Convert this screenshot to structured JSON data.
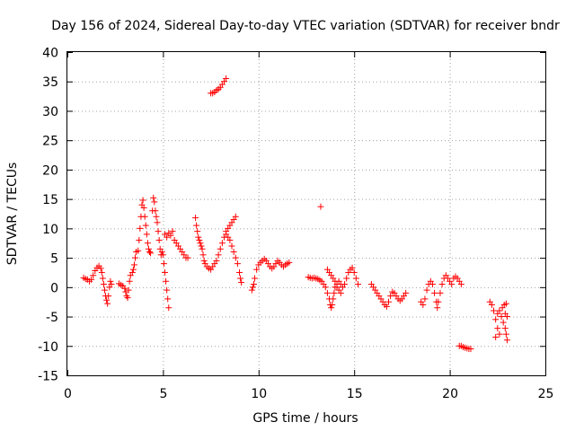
{
  "chart_data": {
    "type": "scatter",
    "title": "Day 156 of 2024, Sidereal Day-to-day VTEC variation (SDTVAR) for receiver bndr",
    "xlabel": "GPS time / hours",
    "ylabel": "SDTVAR / TECUs",
    "xlim": [
      0,
      25
    ],
    "ylim": [
      -15,
      40
    ],
    "xticks": [
      0,
      5,
      10,
      15,
      20,
      25
    ],
    "yticks": [
      -15,
      -10,
      -5,
      0,
      5,
      10,
      15,
      20,
      25,
      30,
      35,
      40
    ],
    "grid": true,
    "marker": "+",
    "marker_color": "#ff0000",
    "series": [
      {
        "name": "SDTVAR",
        "points": [
          [
            0.85,
            1.6
          ],
          [
            0.95,
            1.4
          ],
          [
            1.05,
            1.3
          ],
          [
            1.15,
            1.0
          ],
          [
            1.25,
            1.3
          ],
          [
            1.35,
            2.0
          ],
          [
            1.45,
            2.8
          ],
          [
            1.55,
            3.3
          ],
          [
            1.65,
            3.6
          ],
          [
            1.75,
            3.2
          ],
          [
            1.8,
            2.5
          ],
          [
            1.85,
            1.5
          ],
          [
            1.9,
            0.5
          ],
          [
            1.95,
            -0.5
          ],
          [
            2.0,
            -1.5
          ],
          [
            2.05,
            -2.2
          ],
          [
            2.1,
            -2.8
          ],
          [
            2.15,
            -1.5
          ],
          [
            2.2,
            0.0
          ],
          [
            2.25,
            1.0
          ],
          [
            2.3,
            0.5
          ],
          [
            2.7,
            0.6
          ],
          [
            2.8,
            0.4
          ],
          [
            2.9,
            0.2
          ],
          [
            3.0,
            -0.2
          ],
          [
            3.05,
            -0.8
          ],
          [
            3.1,
            -1.5
          ],
          [
            3.15,
            -1.8
          ],
          [
            3.2,
            -0.5
          ],
          [
            3.25,
            1.0
          ],
          [
            3.3,
            2.0
          ],
          [
            3.4,
            2.5
          ],
          [
            3.45,
            3.0
          ],
          [
            3.5,
            3.8
          ],
          [
            3.55,
            5.0
          ],
          [
            3.6,
            6.0
          ],
          [
            3.7,
            6.2
          ],
          [
            3.75,
            8.0
          ],
          [
            3.8,
            10.0
          ],
          [
            3.85,
            12.0
          ],
          [
            3.9,
            14.0
          ],
          [
            3.95,
            14.8
          ],
          [
            4.0,
            13.5
          ],
          [
            4.05,
            12.0
          ],
          [
            4.1,
            10.5
          ],
          [
            4.15,
            9.0
          ],
          [
            4.2,
            7.5
          ],
          [
            4.25,
            6.5
          ],
          [
            4.3,
            6.0
          ],
          [
            4.35,
            5.8
          ],
          [
            4.45,
            13.0
          ],
          [
            4.5,
            15.2
          ],
          [
            4.55,
            14.5
          ],
          [
            4.6,
            13.0
          ],
          [
            4.65,
            12.0
          ],
          [
            4.7,
            11.0
          ],
          [
            4.75,
            9.5
          ],
          [
            4.8,
            8.0
          ],
          [
            4.85,
            6.5
          ],
          [
            4.9,
            5.5
          ],
          [
            4.95,
            6.0
          ],
          [
            5.0,
            5.5
          ],
          [
            5.05,
            4.0
          ],
          [
            5.1,
            2.5
          ],
          [
            5.15,
            1.0
          ],
          [
            5.2,
            -0.5
          ],
          [
            5.25,
            -2.0
          ],
          [
            5.3,
            -3.5
          ],
          [
            5.1,
            9.0
          ],
          [
            5.2,
            8.5
          ],
          [
            5.3,
            9.2
          ],
          [
            5.4,
            8.8
          ],
          [
            5.5,
            9.5
          ],
          [
            5.6,
            8.0
          ],
          [
            5.7,
            7.5
          ],
          [
            5.8,
            7.0
          ],
          [
            5.9,
            6.5
          ],
          [
            6.0,
            6.0
          ],
          [
            6.1,
            5.5
          ],
          [
            6.2,
            5.0
          ],
          [
            6.3,
            5.0
          ],
          [
            6.7,
            11.8
          ],
          [
            6.75,
            10.5
          ],
          [
            6.8,
            9.5
          ],
          [
            6.85,
            8.5
          ],
          [
            6.9,
            8.0
          ],
          [
            6.95,
            7.5
          ],
          [
            7.0,
            7.0
          ],
          [
            7.05,
            6.5
          ],
          [
            7.1,
            5.5
          ],
          [
            7.15,
            4.5
          ],
          [
            7.2,
            4.0
          ],
          [
            7.3,
            3.5
          ],
          [
            7.4,
            3.2
          ],
          [
            7.5,
            3.0
          ],
          [
            7.6,
            3.5
          ],
          [
            7.7,
            4.0
          ],
          [
            7.8,
            4.5
          ],
          [
            7.9,
            5.5
          ],
          [
            8.0,
            6.5
          ],
          [
            8.1,
            7.5
          ],
          [
            8.2,
            8.5
          ],
          [
            8.3,
            9.0
          ],
          [
            8.4,
            8.5
          ],
          [
            8.5,
            8.0
          ],
          [
            8.6,
            7.0
          ],
          [
            8.7,
            6.0
          ],
          [
            8.8,
            5.0
          ],
          [
            8.9,
            4.0
          ],
          [
            9.0,
            2.5
          ],
          [
            9.05,
            1.5
          ],
          [
            9.1,
            0.8
          ],
          [
            8.3,
            9.5
          ],
          [
            8.4,
            10.0
          ],
          [
            8.5,
            10.5
          ],
          [
            8.6,
            11.0
          ],
          [
            8.7,
            11.5
          ],
          [
            8.8,
            12.0
          ],
          [
            7.5,
            33.0
          ],
          [
            7.6,
            33.0
          ],
          [
            7.7,
            33.2
          ],
          [
            7.8,
            33.5
          ],
          [
            7.9,
            33.7
          ],
          [
            8.0,
            34.0
          ],
          [
            8.1,
            34.5
          ],
          [
            8.2,
            35.0
          ],
          [
            8.3,
            35.5
          ],
          [
            9.65,
            -0.5
          ],
          [
            9.7,
            0.0
          ],
          [
            9.75,
            0.5
          ],
          [
            9.8,
            1.5
          ],
          [
            9.9,
            3.0
          ],
          [
            10.0,
            3.8
          ],
          [
            10.1,
            4.2
          ],
          [
            10.2,
            4.5
          ],
          [
            10.3,
            4.8
          ],
          [
            10.4,
            4.5
          ],
          [
            10.5,
            4.0
          ],
          [
            10.6,
            3.5
          ],
          [
            10.7,
            3.2
          ],
          [
            10.8,
            3.5
          ],
          [
            10.9,
            4.0
          ],
          [
            11.0,
            4.5
          ],
          [
            11.1,
            4.2
          ],
          [
            11.2,
            3.8
          ],
          [
            11.3,
            3.5
          ],
          [
            11.4,
            3.8
          ],
          [
            11.5,
            4.0
          ],
          [
            11.6,
            4.2
          ],
          [
            13.25,
            13.7
          ],
          [
            12.6,
            1.7
          ],
          [
            12.7,
            1.6
          ],
          [
            12.8,
            1.5
          ],
          [
            12.9,
            1.6
          ],
          [
            13.0,
            1.5
          ],
          [
            13.1,
            1.4
          ],
          [
            13.2,
            1.2
          ],
          [
            13.3,
            1.0
          ],
          [
            13.4,
            0.5
          ],
          [
            13.5,
            0.0
          ],
          [
            13.6,
            -1.0
          ],
          [
            13.7,
            -2.0
          ],
          [
            13.75,
            -3.0
          ],
          [
            13.8,
            -3.5
          ],
          [
            13.85,
            -3.0
          ],
          [
            13.9,
            -2.0
          ],
          [
            13.95,
            -1.0
          ],
          [
            14.0,
            0.0
          ],
          [
            14.1,
            0.5
          ],
          [
            14.2,
            1.0
          ],
          [
            14.3,
            0.5
          ],
          [
            14.4,
            0.0
          ],
          [
            14.5,
            0.5
          ],
          [
            14.6,
            1.5
          ],
          [
            14.7,
            2.5
          ],
          [
            14.8,
            3.0
          ],
          [
            14.9,
            3.3
          ],
          [
            15.0,
            2.5
          ],
          [
            15.1,
            1.5
          ],
          [
            15.2,
            0.5
          ],
          [
            13.6,
            3.0
          ],
          [
            13.7,
            2.5
          ],
          [
            13.8,
            2.0
          ],
          [
            13.9,
            1.5
          ],
          [
            14.0,
            1.0
          ],
          [
            14.1,
            0.0
          ],
          [
            14.2,
            -0.5
          ],
          [
            14.3,
            -1.0
          ],
          [
            15.9,
            0.5
          ],
          [
            16.0,
            0.0
          ],
          [
            16.1,
            -0.5
          ],
          [
            16.2,
            -1.0
          ],
          [
            16.3,
            -1.5
          ],
          [
            16.4,
            -2.0
          ],
          [
            16.5,
            -2.5
          ],
          [
            16.6,
            -3.0
          ],
          [
            16.7,
            -3.3
          ],
          [
            16.8,
            -2.5
          ],
          [
            16.9,
            -1.5
          ],
          [
            17.0,
            -0.8
          ],
          [
            17.1,
            -1.0
          ],
          [
            17.2,
            -1.5
          ],
          [
            17.3,
            -2.0
          ],
          [
            17.4,
            -2.3
          ],
          [
            17.5,
            -2.0
          ],
          [
            17.6,
            -1.5
          ],
          [
            17.7,
            -1.0
          ],
          [
            18.5,
            -2.5
          ],
          [
            18.6,
            -3.0
          ],
          [
            18.7,
            -2.0
          ],
          [
            18.8,
            -0.5
          ],
          [
            18.9,
            0.5
          ],
          [
            19.0,
            1.0
          ],
          [
            19.1,
            0.5
          ],
          [
            19.2,
            -1.0
          ],
          [
            19.3,
            -2.5
          ],
          [
            19.35,
            -3.5
          ],
          [
            19.4,
            -2.5
          ],
          [
            19.5,
            -1.0
          ],
          [
            19.6,
            0.5
          ],
          [
            19.7,
            1.5
          ],
          [
            19.8,
            2.0
          ],
          [
            19.9,
            1.5
          ],
          [
            20.0,
            1.0
          ],
          [
            20.1,
            0.5
          ],
          [
            20.2,
            1.5
          ],
          [
            20.3,
            1.8
          ],
          [
            20.4,
            1.5
          ],
          [
            20.5,
            1.0
          ],
          [
            20.6,
            0.5
          ],
          [
            20.5,
            -10.0
          ],
          [
            20.6,
            -10.0
          ],
          [
            20.7,
            -10.2
          ],
          [
            20.8,
            -10.3
          ],
          [
            20.9,
            -10.4
          ],
          [
            21.0,
            -10.5
          ],
          [
            21.1,
            -10.5
          ],
          [
            22.1,
            -2.5
          ],
          [
            22.2,
            -3.0
          ],
          [
            22.3,
            -4.0
          ],
          [
            22.4,
            -5.5
          ],
          [
            22.5,
            -7.0
          ],
          [
            22.6,
            -8.0
          ],
          [
            22.4,
            -8.5
          ],
          [
            22.5,
            -4.5
          ],
          [
            22.6,
            -4.0
          ],
          [
            22.7,
            -5.0
          ],
          [
            22.8,
            -6.0
          ],
          [
            22.9,
            -7.0
          ],
          [
            22.95,
            -8.0
          ],
          [
            23.0,
            -9.0
          ],
          [
            22.75,
            -3.5
          ],
          [
            22.85,
            -3.0
          ],
          [
            22.95,
            -2.8
          ],
          [
            22.9,
            -4.5
          ],
          [
            23.0,
            -5.0
          ]
        ]
      }
    ]
  }
}
